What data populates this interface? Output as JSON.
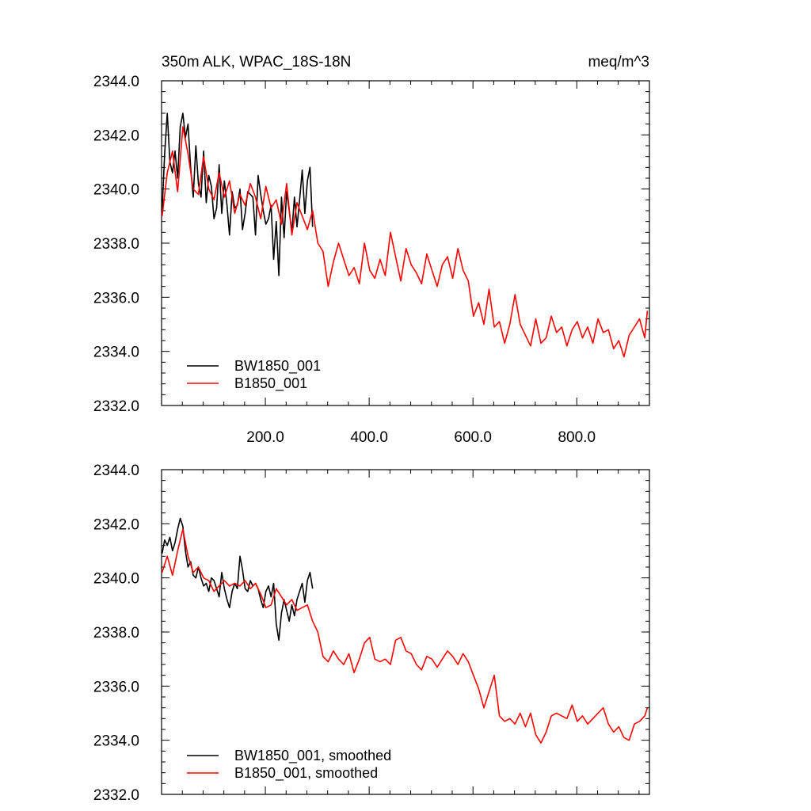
{
  "chart_data": [
    {
      "type": "line",
      "title_left": "350m ALK, WPAC_18S-18N",
      "title_right": "meq/m^3",
      "xlim": [
        0,
        940
      ],
      "ylim": [
        2332,
        2344
      ],
      "x_ticks": [
        200,
        400,
        600,
        800
      ],
      "x_tick_labels": [
        "200.0",
        "400.0",
        "600.0",
        "800.0"
      ],
      "y_ticks": [
        2332,
        2334,
        2336,
        2338,
        2340,
        2342,
        2344
      ],
      "y_tick_labels": [
        "2332.0",
        "2334.0",
        "2336.0",
        "2338.0",
        "2340.0",
        "2342.0",
        "2344.0"
      ],
      "legend_position": "bottom-left",
      "series": [
        {
          "name": "BW1850_001",
          "color": "#000000",
          "x": [
            1,
            6,
            11,
            16,
            21,
            26,
            31,
            36,
            41,
            46,
            51,
            56,
            61,
            66,
            71,
            76,
            81,
            86,
            91,
            96,
            101,
            106,
            111,
            116,
            121,
            126,
            131,
            136,
            141,
            146,
            151,
            156,
            161,
            166,
            171,
            176,
            181,
            186,
            191,
            196,
            201,
            206,
            211,
            216,
            221,
            226,
            231,
            236,
            241,
            246,
            251,
            256,
            261,
            266,
            271,
            276,
            281,
            286,
            291
          ],
          "values": [
            2339.2,
            2341.3,
            2342.8,
            2341.0,
            2340.6,
            2341.4,
            2340.4,
            2342.3,
            2342.8,
            2341.9,
            2342.4,
            2340.8,
            2339.7,
            2341.6,
            2340.2,
            2339.7,
            2341.4,
            2339.5,
            2340.5,
            2340.1,
            2338.9,
            2339.3,
            2340.9,
            2339.1,
            2340.3,
            2339.4,
            2338.3,
            2339.9,
            2339.3,
            2339.4,
            2340.0,
            2338.5,
            2339.1,
            2339.9,
            2339.8,
            2339.7,
            2338.3,
            2340.5,
            2339.8,
            2339.2,
            2338.7,
            2338.9,
            2339.4,
            2337.4,
            2338.8,
            2336.8,
            2339.7,
            2338.2,
            2339.9,
            2339.2,
            2338.4,
            2339.7,
            2338.6,
            2339.6,
            2340.7,
            2339.1,
            2340.3,
            2340.8,
            2338.6
          ]
        },
        {
          "name": "B1850_001",
          "color": "#ff0000",
          "x": [
            1,
            11,
            21,
            31,
            41,
            51,
            61,
            71,
            81,
            91,
            101,
            111,
            121,
            131,
            141,
            151,
            161,
            171,
            181,
            191,
            201,
            211,
            221,
            231,
            241,
            251,
            261,
            271,
            281,
            291,
            301,
            311,
            321,
            331,
            341,
            351,
            361,
            371,
            381,
            391,
            401,
            411,
            421,
            431,
            441,
            451,
            461,
            471,
            481,
            491,
            501,
            511,
            521,
            531,
            541,
            551,
            561,
            571,
            581,
            591,
            601,
            611,
            621,
            631,
            641,
            651,
            661,
            671,
            681,
            691,
            701,
            711,
            721,
            731,
            741,
            751,
            761,
            771,
            781,
            791,
            801,
            811,
            821,
            831,
            841,
            851,
            861,
            871,
            881,
            891,
            901,
            911,
            921,
            931,
            936
          ],
          "values": [
            2339.0,
            2340.6,
            2341.4,
            2339.9,
            2342.3,
            2341.3,
            2340.0,
            2339.8,
            2341.2,
            2340.0,
            2339.6,
            2340.6,
            2339.7,
            2340.3,
            2339.1,
            2339.8,
            2339.4,
            2340.2,
            2339.7,
            2338.9,
            2340.1,
            2339.3,
            2339.6,
            2338.7,
            2340.2,
            2338.3,
            2339.5,
            2339.0,
            2338.5,
            2339.2,
            2338.0,
            2337.7,
            2336.4,
            2337.3,
            2338.0,
            2337.4,
            2336.8,
            2337.1,
            2336.5,
            2338.0,
            2337.0,
            2336.7,
            2337.4,
            2336.8,
            2338.4,
            2337.5,
            2336.6,
            2337.8,
            2337.2,
            2336.9,
            2336.5,
            2337.6,
            2337.0,
            2336.4,
            2337.2,
            2337.5,
            2336.7,
            2337.8,
            2337.0,
            2336.6,
            2335.3,
            2335.8,
            2335.0,
            2336.3,
            2334.9,
            2335.1,
            2334.3,
            2335.0,
            2336.1,
            2335.0,
            2334.6,
            2334.2,
            2335.2,
            2334.3,
            2334.5,
            2335.3,
            2334.7,
            2334.9,
            2334.2,
            2334.8,
            2335.1,
            2334.5,
            2334.9,
            2334.3,
            2335.2,
            2334.7,
            2334.8,
            2334.1,
            2334.4,
            2333.8,
            2334.6,
            2334.9,
            2335.2,
            2334.5,
            2335.5
          ]
        }
      ]
    },
    {
      "type": "line",
      "xlim": [
        0,
        940
      ],
      "ylim": [
        2332,
        2344
      ],
      "x_ticks": [
        200,
        400,
        600,
        800
      ],
      "y_ticks": [
        2332,
        2334,
        2336,
        2338,
        2340,
        2342,
        2344
      ],
      "y_tick_labels": [
        "2332.0",
        "2334.0",
        "2336.0",
        "2338.0",
        "2340.0",
        "2342.0",
        "2344.0"
      ],
      "legend_position": "bottom-left",
      "series": [
        {
          "name": "BW1850_001, smoothed",
          "color": "#000000",
          "x": [
            1,
            6,
            11,
            16,
            21,
            26,
            31,
            36,
            41,
            46,
            51,
            56,
            61,
            66,
            71,
            76,
            81,
            86,
            91,
            96,
            101,
            106,
            111,
            116,
            121,
            126,
            131,
            136,
            141,
            146,
            151,
            156,
            161,
            166,
            171,
            176,
            181,
            186,
            191,
            196,
            201,
            206,
            211,
            216,
            221,
            226,
            231,
            236,
            241,
            246,
            251,
            256,
            261,
            266,
            271,
            276,
            281,
            286,
            291
          ],
          "values": [
            2340.9,
            2341.4,
            2341.2,
            2341.5,
            2341.0,
            2341.3,
            2341.8,
            2342.2,
            2341.9,
            2341.0,
            2340.4,
            2340.6,
            2340.1,
            2340.0,
            2340.4,
            2340.0,
            2339.7,
            2339.8,
            2339.5,
            2340.0,
            2339.9,
            2339.6,
            2339.3,
            2340.2,
            2339.6,
            2339.2,
            2338.9,
            2339.5,
            2339.8,
            2339.6,
            2340.8,
            2340.3,
            2339.6,
            2339.5,
            2339.9,
            2339.7,
            2339.8,
            2339.6,
            2339.2,
            2338.9,
            2339.5,
            2339.7,
            2339.3,
            2339.8,
            2338.3,
            2337.7,
            2338.7,
            2339.2,
            2338.8,
            2338.4,
            2339.0,
            2338.6,
            2339.2,
            2339.5,
            2339.8,
            2339.1,
            2339.9,
            2340.2,
            2339.6
          ]
        },
        {
          "name": "B1850_001, smoothed",
          "color": "#ff0000",
          "x": [
            1,
            11,
            21,
            31,
            41,
            51,
            61,
            71,
            81,
            91,
            101,
            111,
            121,
            131,
            141,
            151,
            161,
            171,
            181,
            191,
            201,
            211,
            221,
            231,
            241,
            251,
            261,
            271,
            281,
            291,
            301,
            311,
            321,
            331,
            341,
            351,
            361,
            371,
            381,
            391,
            401,
            411,
            421,
            431,
            441,
            451,
            461,
            471,
            481,
            491,
            501,
            511,
            521,
            531,
            541,
            551,
            561,
            571,
            581,
            591,
            601,
            611,
            621,
            631,
            641,
            651,
            661,
            671,
            681,
            691,
            701,
            711,
            721,
            731,
            741,
            751,
            761,
            771,
            781,
            791,
            801,
            811,
            821,
            831,
            841,
            851,
            861,
            871,
            881,
            891,
            901,
            911,
            921,
            931,
            936
          ],
          "values": [
            2340.2,
            2340.8,
            2340.1,
            2341.0,
            2341.8,
            2340.8,
            2340.2,
            2340.4,
            2340.0,
            2339.9,
            2339.5,
            2339.7,
            2339.9,
            2339.7,
            2339.8,
            2339.7,
            2339.9,
            2339.6,
            2339.8,
            2339.4,
            2338.9,
            2339.0,
            2339.6,
            2339.3,
            2339.0,
            2339.2,
            2338.8,
            2338.9,
            2339.0,
            2338.4,
            2338.0,
            2337.1,
            2336.9,
            2337.3,
            2337.0,
            2336.8,
            2337.2,
            2336.5,
            2337.0,
            2337.6,
            2337.8,
            2337.0,
            2336.9,
            2337.0,
            2336.8,
            2337.7,
            2337.8,
            2337.3,
            2337.2,
            2336.8,
            2336.6,
            2337.1,
            2337.0,
            2336.7,
            2337.0,
            2337.3,
            2337.1,
            2336.8,
            2337.2,
            2336.9,
            2336.4,
            2335.9,
            2335.2,
            2335.8,
            2336.4,
            2334.9,
            2334.7,
            2334.8,
            2334.6,
            2335.0,
            2334.5,
            2335.0,
            2334.2,
            2333.9,
            2334.3,
            2334.9,
            2335.0,
            2334.9,
            2334.8,
            2335.3,
            2334.7,
            2334.9,
            2334.6,
            2334.8,
            2335.0,
            2335.2,
            2334.6,
            2334.3,
            2334.5,
            2334.1,
            2334.0,
            2334.6,
            2334.7,
            2334.9,
            2335.2
          ]
        }
      ]
    }
  ]
}
